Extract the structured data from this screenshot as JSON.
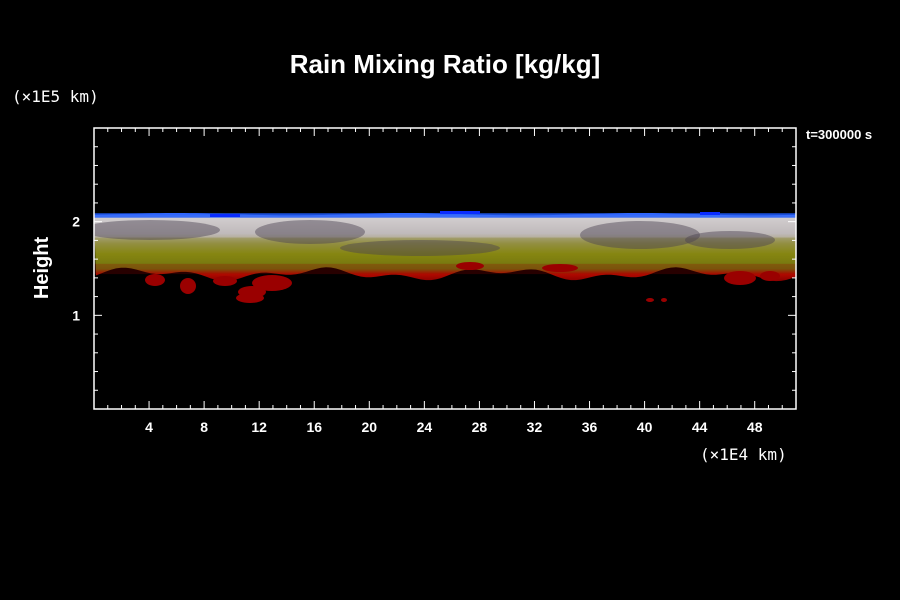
{
  "chart_data": {
    "type": "heatmap",
    "title": "Rain Mixing Ratio [kg/kg]",
    "xlabel": "",
    "ylabel": "Height",
    "x_unit_label": "(×1E4 km)",
    "y_unit_label": "(×1E5 km)",
    "time_label": "t=300000 s",
    "xlim": [
      0,
      51
    ],
    "ylim": [
      0,
      3
    ],
    "xticks": [
      4,
      8,
      12,
      16,
      20,
      24,
      28,
      32,
      36,
      40,
      44,
      48
    ],
    "yticks": [
      1,
      2
    ],
    "x_minor_step": 1,
    "y_minor_step": 0.2,
    "grid": false,
    "layers": [
      {
        "name": "blue top rim",
        "color": "#1f5cff",
        "y_bottom": 2.04,
        "y_top": 2.09
      },
      {
        "name": "white-grey band",
        "color": "#c9c4c4",
        "y_bottom": 1.83,
        "y_top": 2.05
      },
      {
        "name": "olive band",
        "color": "#7d7d10",
        "y_bottom": 1.55,
        "y_top": 1.83
      },
      {
        "name": "red base",
        "color": "#9a0000",
        "y_bottom": 1.44,
        "y_top": 1.55
      }
    ],
    "colors": {
      "background": "#000000",
      "frame": "#ffffff",
      "red": "#9a0000",
      "olive": "#8a8a12",
      "grey": "#c8c4c4",
      "blue": "#1f5cff",
      "dark_plume": "#4a4050"
    }
  }
}
